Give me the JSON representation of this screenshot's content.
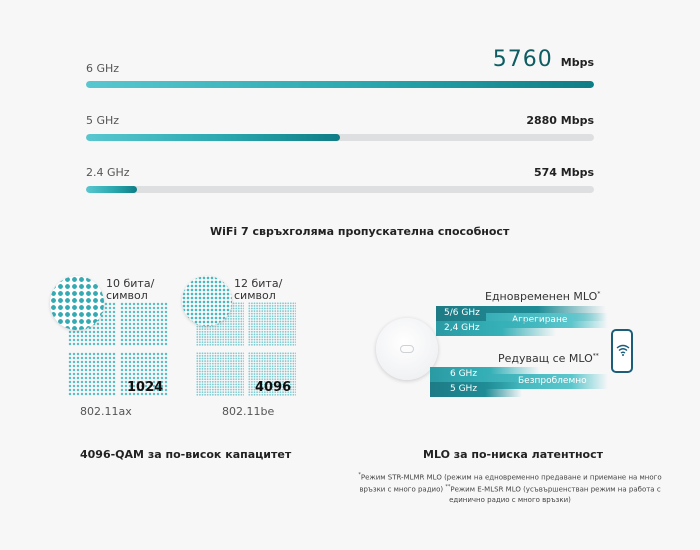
{
  "throughput": {
    "bands": [
      {
        "label": "6 GHz",
        "value_num": "5760",
        "value_unit": "Mbps",
        "fill": 1.0
      },
      {
        "label": "5 GHz",
        "value": "2880 Mbps",
        "fill": 0.5
      },
      {
        "label": "2.4 GHz",
        "value": "574 Mbps",
        "fill": 0.1
      }
    ],
    "caption": "WiFi 7 свръхголяма пропускателна способност"
  },
  "qam": {
    "left": {
      "bits": "10 бита/\nсимвол",
      "number": "1024",
      "standard": "802.11ax"
    },
    "right": {
      "bits": "12 бита/\nсимвол",
      "number": "4096",
      "standard": "802.11be"
    },
    "caption": "4096-QAM за по-висок капацитет"
  },
  "mlo": {
    "simultaneous_title": "Едновременен MLO",
    "simultaneous_mark": "*",
    "alternating_title": "Редуващ се MLO",
    "alternating_mark": "**",
    "ribbon_5_6": "5/6 GHz",
    "ribbon_2_4": "2,4 GHz",
    "ribbon_agg": "Агрегиране",
    "ribbon_6": "6 GHz",
    "ribbon_5": "5 GHz",
    "ribbon_seamless": "Безпроблемно",
    "caption": "MLO за по-ниска латентност",
    "footnote_mark1": "*",
    "footnote1": "Режим STR-MLMR MLO (режим на едновременно предаване и приемане на много връзки с много радио)",
    "footnote_mark2": "**",
    "footnote2": "Режим E-MLSR MLO (усъвършенстван режим на работа с единично радио с много връзки)"
  },
  "colors": {
    "accent_dark": "#0d5d62",
    "accent": "#2aa7ae",
    "accent_light": "#59c7cf",
    "track": "#dedfe1"
  }
}
